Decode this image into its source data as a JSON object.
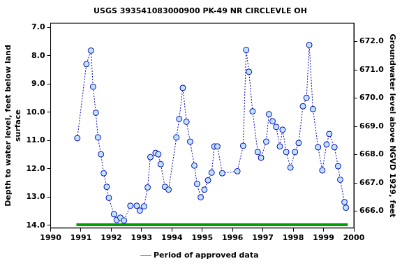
{
  "chart_data": {
    "type": "line",
    "title": "USGS 393541083000900 PK-49 NR CIRCLEVLE OH",
    "x_label": null,
    "y_label": [
      "Depth to water level, feet below land",
      "surface"
    ],
    "y2_label": "Groundwater level above NGVD 1929, feet",
    "xlim": [
      1990,
      2000
    ],
    "xticks": [
      1990,
      1991,
      1992,
      1993,
      1994,
      1995,
      1996,
      1997,
      1998,
      1999,
      2000
    ],
    "ylim": [
      14.1,
      6.85
    ],
    "yticks": [
      {
        "value": 7,
        "label": "7.0"
      },
      {
        "value": 8,
        "label": "8.0"
      },
      {
        "value": 9,
        "label": "9.0"
      },
      {
        "value": 10,
        "label": "10.0"
      },
      {
        "value": 11,
        "label": "11.0"
      },
      {
        "value": 12,
        "label": "12.0"
      },
      {
        "value": 13,
        "label": "13.0"
      },
      {
        "value": 14,
        "label": "14.0"
      }
    ],
    "y2lim": [
      665.4,
      672.65
    ],
    "y2ticks": [
      {
        "value": 666,
        "label": "666.0"
      },
      {
        "value": 667,
        "label": "667.0"
      },
      {
        "value": 668,
        "label": "668.0"
      },
      {
        "value": 669,
        "label": "669.0"
      },
      {
        "value": 670,
        "label": "670.0"
      },
      {
        "value": 671,
        "label": "671.0"
      },
      {
        "value": 672,
        "label": "672.0"
      }
    ],
    "grid": false,
    "legend": "bottom",
    "series": [
      {
        "color": "#0000c0",
        "marker": "circle",
        "line_style": "dotted",
        "x": [
          1990.88,
          1991.18,
          1991.33,
          1991.4,
          1991.49,
          1991.56,
          1991.66,
          1991.75,
          1991.85,
          1991.92,
          1992.09,
          1992.18,
          1992.3,
          1992.42,
          1992.63,
          1992.84,
          1992.94,
          1993.08,
          1993.2,
          1993.29,
          1993.46,
          1993.55,
          1993.63,
          1993.77,
          1993.89,
          1994.15,
          1994.24,
          1994.36,
          1994.48,
          1994.6,
          1994.74,
          1994.83,
          1994.95,
          1995.07,
          1995.19,
          1995.31,
          1995.4,
          1995.5,
          1995.66,
          1996.16,
          1996.35,
          1996.45,
          1996.54,
          1996.66,
          1996.83,
          1996.94,
          1997.11,
          1997.2,
          1997.32,
          1997.44,
          1997.56,
          1997.65,
          1997.77,
          1997.91,
          1998.06,
          1998.18,
          1998.32,
          1998.44,
          1998.53,
          1998.65,
          1998.82,
          1998.96,
          1999.1,
          1999.19,
          1999.36,
          1999.48,
          1999.55,
          1999.69,
          1999.74
        ],
        "values": [
          10.92,
          8.3,
          7.82,
          9.1,
          10.02,
          10.89,
          11.49,
          12.16,
          12.64,
          13.03,
          13.61,
          13.81,
          13.73,
          13.83,
          13.31,
          13.31,
          13.48,
          13.33,
          12.66,
          11.59,
          11.44,
          11.49,
          11.84,
          12.64,
          12.74,
          10.89,
          10.24,
          9.14,
          10.34,
          11.04,
          11.89,
          12.54,
          13.01,
          12.74,
          12.41,
          12.14,
          11.21,
          11.21,
          12.16,
          12.09,
          11.19,
          7.8,
          8.57,
          9.97,
          11.41,
          11.61,
          11.04,
          10.07,
          10.32,
          10.52,
          11.21,
          10.62,
          11.41,
          11.96,
          11.41,
          11.09,
          9.79,
          9.49,
          7.62,
          9.89,
          11.24,
          12.06,
          11.14,
          10.77,
          11.24,
          11.91,
          12.39,
          13.18,
          13.38
        ]
      },
      {
        "name": "Period of approved data",
        "color": "#00a000",
        "line_style": "solid",
        "x": [
          1990.85,
          1999.8
        ],
        "values": [
          13.98,
          13.98
        ]
      }
    ]
  }
}
